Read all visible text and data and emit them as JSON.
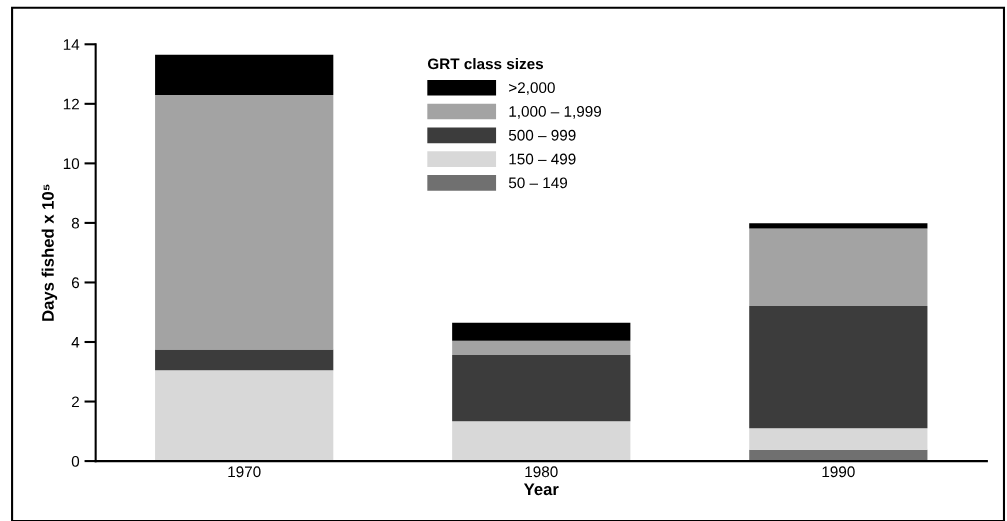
{
  "chart_data": {
    "type": "bar",
    "stacked": true,
    "xlabel": "Year",
    "ylabel": "Days fished x 10⁵",
    "legend_title": "GRT class sizes",
    "legend": "top",
    "categories": [
      "1970",
      "1980",
      "1990"
    ],
    "series": [
      {
        "name": "50 – 149",
        "color": "#707070",
        "values": [
          0,
          0,
          0.38
        ]
      },
      {
        "name": "150 – 499",
        "color": "#d8d8d8",
        "values": [
          3.05,
          1.34,
          0.72
        ]
      },
      {
        "name": "500 – 999",
        "color": "#3c3c3c",
        "values": [
          0.7,
          2.22,
          4.11
        ]
      },
      {
        "name": "1,000 – 1,999",
        "color": "#a3a3a3",
        "values": [
          8.55,
          0.48,
          2.6
        ]
      },
      {
        "name": ">2,000",
        "color": "#000000",
        "values": [
          1.35,
          0.61,
          0.18
        ]
      }
    ],
    "ylim": [
      0,
      14
    ],
    "yticks": [
      0,
      2,
      4,
      6,
      8,
      10,
      12,
      14
    ],
    "grid": false
  }
}
